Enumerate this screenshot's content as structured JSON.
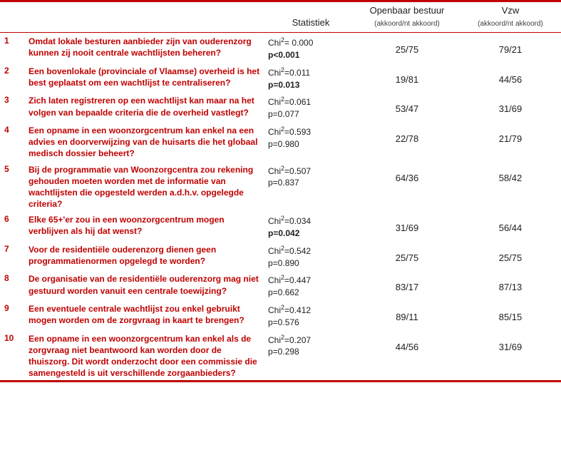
{
  "columns": {
    "stat_header": "Statistiek",
    "openbaar_header": "Openbaar bestuur",
    "vzw_header": "Vzw",
    "sub_header": "(akkoord/nt akkoord)"
  },
  "rows": [
    {
      "num": "1",
      "question": "Omdat lokale besturen aanbieder zijn van ouderenzorg kunnen zij nooit centrale wachtlijsten beheren?",
      "chi2": "Chi²= 0.000",
      "p": "p<0.001",
      "p_bold": true,
      "openbaar": "25/75",
      "vzw": "79/21"
    },
    {
      "num": "2",
      "question": "Een bovenlokale (provinciale of Vlaamse) overheid is het best geplaatst om een wachtlijst te centraliseren?",
      "chi2": "Chi²=0.011",
      "p": "p=0.013",
      "p_bold": true,
      "openbaar": "19/81",
      "vzw": "44/56"
    },
    {
      "num": "3",
      "question": "Zich laten registreren op een wachtlijst kan maar na het volgen van bepaalde criteria die de overheid vastlegt?",
      "chi2": "Chi²=0.061",
      "p": "p=0.077",
      "p_bold": false,
      "openbaar": "53/47",
      "vzw": "31/69"
    },
    {
      "num": "4",
      "question": "Een opname in een woonzorgcentrum kan enkel na een advies en doorverwijzing van de huisarts die het globaal medisch dossier beheert?",
      "chi2": "Chi²=0.593",
      "p": "p=0.980",
      "p_bold": false,
      "openbaar": "22/78",
      "vzw": "21/79"
    },
    {
      "num": "5",
      "question": "Bij de programmatie van Woonzorgcentra zou rekening gehouden moeten worden met de informatie van wachtlijsten die opgesteld werden a.d.h.v. opgelegde criteria?",
      "chi2": "Chi²=0.507",
      "p": "p=0.837",
      "p_bold": false,
      "openbaar": "64/36",
      "vzw": "58/42"
    },
    {
      "num": "6",
      "question": "Elke 65+'er zou in een woonzorgcentrum mogen verblijven als hij dat wenst?",
      "chi2": "Chi²=0.034",
      "p": "p=0.042",
      "p_bold": true,
      "openbaar": "31/69",
      "vzw": "56/44"
    },
    {
      "num": "7",
      "question": "Voor de residentiële ouderenzorg dienen geen programmatienormen opgelegd te worden?",
      "chi2": "Chi²=0.542",
      "p": "p=0.890",
      "p_bold": false,
      "openbaar": "25/75",
      "vzw": "25/75"
    },
    {
      "num": "8",
      "question": "De organisatie van de residentiële ouderenzorg mag niet gestuurd worden vanuit een centrale toewijzing?",
      "chi2": "Chi²=0.447",
      "p": "p=0.662",
      "p_bold": false,
      "openbaar": "83/17",
      "vzw": "87/13"
    },
    {
      "num": "9",
      "question": "Een eventuele centrale wachtlijst zou enkel gebruikt mogen worden om de zorgvraag in kaart te brengen?",
      "chi2": "Chi²=0.412",
      "p": "p=0.576",
      "p_bold": false,
      "openbaar": "89/11",
      "vzw": "85/15"
    },
    {
      "num": "10",
      "question": "Een opname in een woonzorgcentrum kan enkel als de zorgvraag niet beantwoord kan worden door de thuiszorg. Dit wordt onderzocht door een commissie die samengesteld is uit verschillende zorgaanbieders?",
      "chi2": "Chi²=0.207",
      "p": "p=0.298",
      "p_bold": false,
      "openbaar": "44/56",
      "vzw": "31/69"
    }
  ],
  "style": {
    "accent": "#c00000",
    "text": "#202020",
    "sub_text": "#404040",
    "background": "#ffffff"
  }
}
